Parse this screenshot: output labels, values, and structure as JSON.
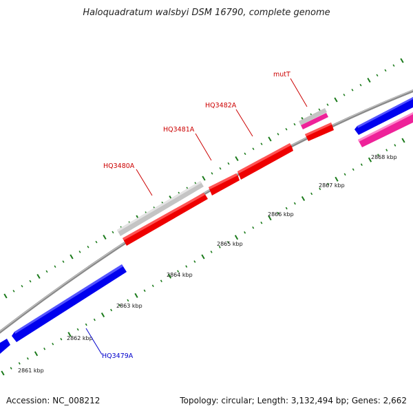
{
  "title": "Haloquadratum walsbyi DSM 16790, complete genome",
  "footer": {
    "accession": "Accession: NC_008212",
    "summary": "Topology: circular; Length: 3,132,494 bp; Genes: 2,662"
  },
  "ticks": [
    {
      "label": "2861 kbp"
    },
    {
      "label": "2862 kbp"
    },
    {
      "label": "2863 kbp"
    },
    {
      "label": "2864 kbp"
    },
    {
      "label": "2865 kbp"
    },
    {
      "label": "2866 kbp"
    },
    {
      "label": "2867 kbp"
    },
    {
      "label": "2868 kbp"
    }
  ],
  "gene_labels": {
    "hq3480a": "HQ3480A",
    "hq3481a": "HQ3481A",
    "hq3482a": "HQ3482A",
    "mutt": "mutT",
    "hq3479a": "HQ3479A"
  },
  "colors": {
    "forward_cds": "#ff0000",
    "reverse_cds": "#0000ee",
    "rna": "#bbbbbb",
    "misc": "#ee2299",
    "backbone": "#888888",
    "ticks": "#1a7a1a",
    "forward_label": "#cc0000",
    "reverse_label": "#0000cc"
  }
}
